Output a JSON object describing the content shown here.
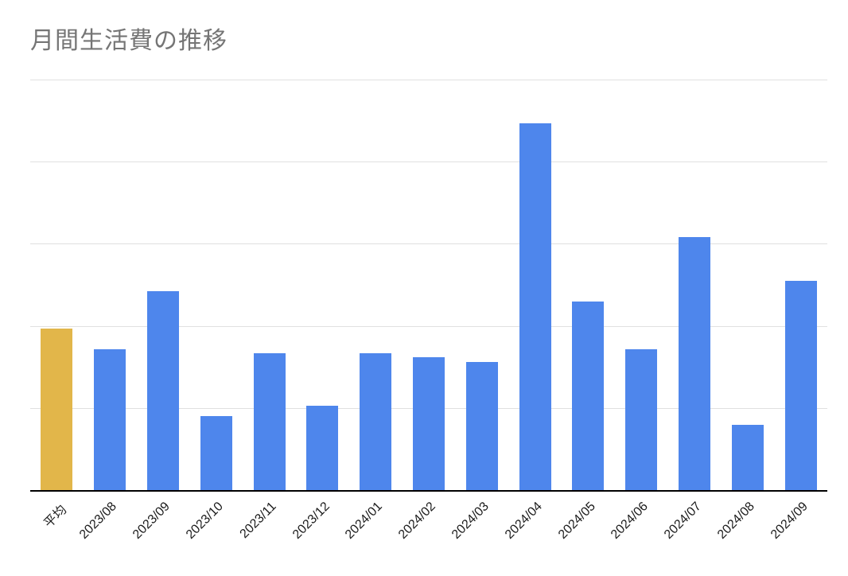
{
  "title": "月間生活費の推移",
  "title_color": "#757575",
  "chart_data": {
    "type": "bar",
    "title": "月間生活費の推移",
    "xlabel": "",
    "ylabel": "",
    "ylim": [
      0,
      5
    ],
    "grid": true,
    "legend": "none",
    "note": "y-axis tick labels are not shown in the image; values estimated in gridline units (5 equal gridline intervals)",
    "categories": [
      "平均",
      "2023/08",
      "2023/09",
      "2023/10",
      "2023/11",
      "2023/12",
      "2024/01",
      "2024/02",
      "2024/03",
      "2024/04",
      "2024/05",
      "2024/06",
      "2024/07",
      "2024/08",
      "2024/09"
    ],
    "values": [
      1.97,
      1.72,
      2.42,
      0.9,
      1.67,
      1.03,
      1.67,
      1.62,
      1.56,
      4.47,
      2.3,
      1.72,
      3.08,
      0.79,
      2.55
    ],
    "bar_colors": [
      "#E2B64A",
      "#4E86EC",
      "#4E86EC",
      "#4E86EC",
      "#4E86EC",
      "#4E86EC",
      "#4E86EC",
      "#4E86EC",
      "#4E86EC",
      "#4E86EC",
      "#4E86EC",
      "#4E86EC",
      "#4E86EC",
      "#4E86EC",
      "#4E86EC"
    ],
    "highlight_category": "平均",
    "highlight_color": "#E2B64A",
    "default_color": "#4E86EC",
    "gridline_color": "#e0e0e0",
    "axis_color": "#000000"
  }
}
